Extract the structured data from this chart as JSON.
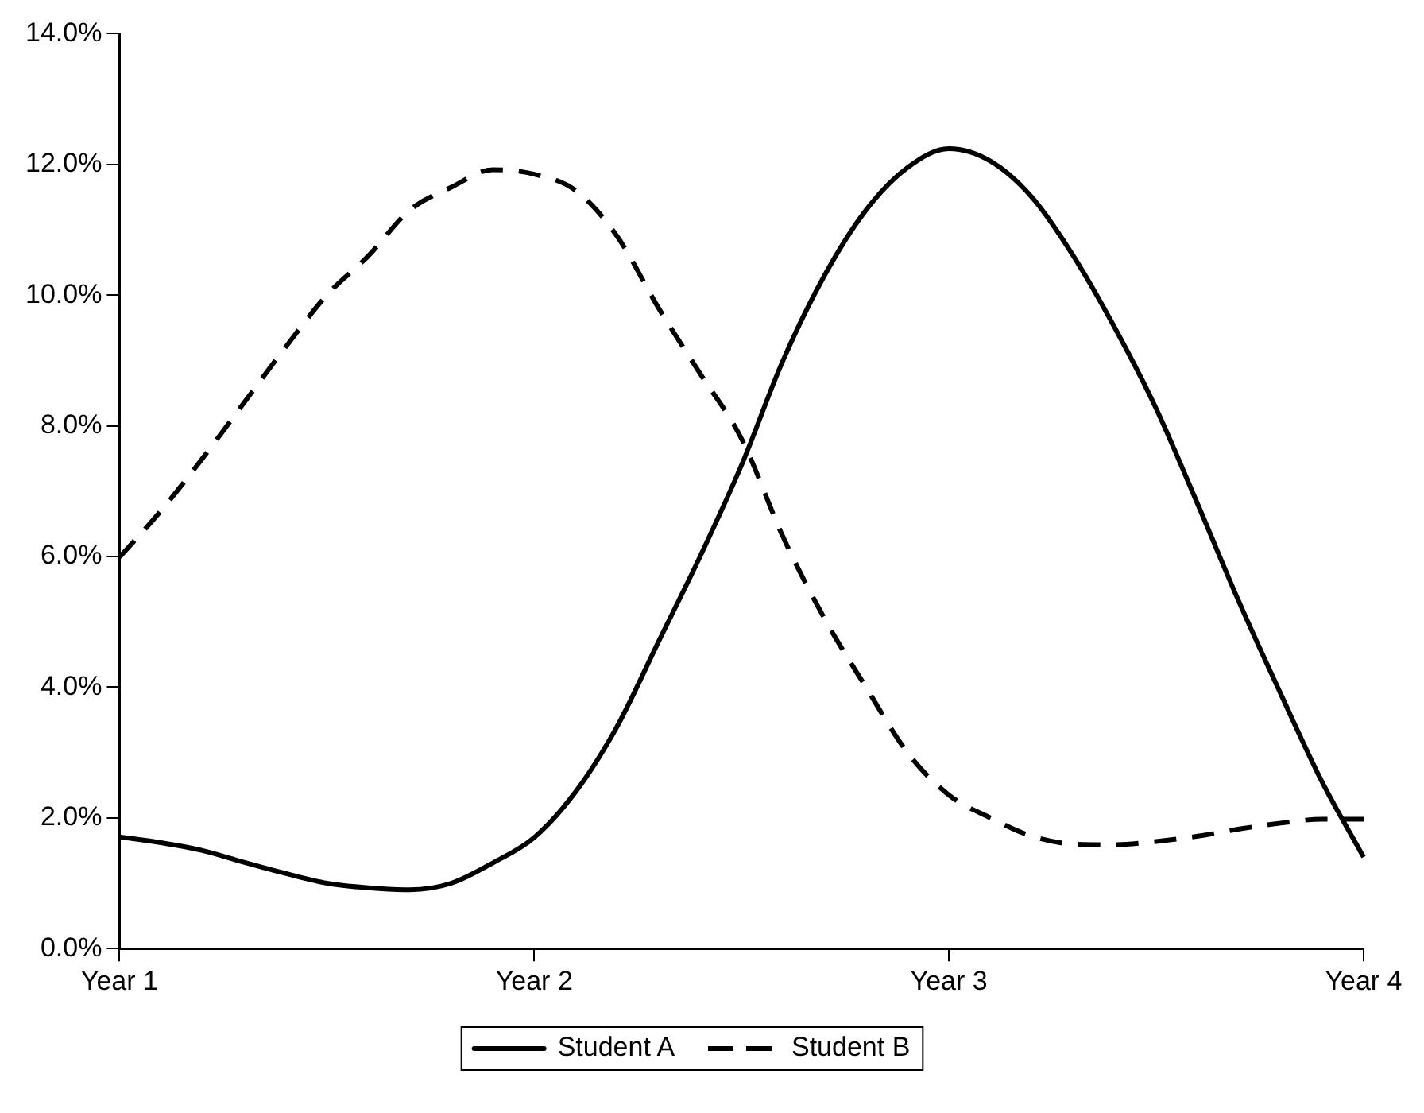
{
  "chart_data": {
    "type": "line",
    "categories": [
      "Year 1",
      null,
      null,
      null,
      null,
      null,
      null,
      null,
      null,
      null,
      "Year 2",
      null,
      null,
      null,
      null,
      null,
      null,
      null,
      null,
      null,
      "Year 3",
      null,
      null,
      null,
      null,
      null,
      null,
      null,
      null,
      null,
      "Year 4"
    ],
    "ylim": [
      0,
      14
    ],
    "yticks": [
      {
        "value": 0,
        "label": "0.0%"
      },
      {
        "value": 2,
        "label": "2.0%"
      },
      {
        "value": 4,
        "label": "4.0%"
      },
      {
        "value": 6,
        "label": "6.0%"
      },
      {
        "value": 8,
        "label": "8.0%"
      },
      {
        "value": 10,
        "label": "10.0%"
      },
      {
        "value": 12,
        "label": "12.0%"
      },
      {
        "value": 14,
        "label": "14.0%"
      }
    ],
    "grid": false,
    "legend": "bottom",
    "marker": "none",
    "series": [
      {
        "name": "Student A",
        "color": "#000000",
        "line_style": "solid",
        "values": [
          1.71,
          1.62,
          1.5,
          1.32,
          1.15,
          1.0,
          0.93,
          0.9,
          1.0,
          1.31,
          1.7,
          2.4,
          3.4,
          4.7,
          6.0,
          7.4,
          9.0,
          10.3,
          11.3,
          11.95,
          12.24,
          12.05,
          11.5,
          10.6,
          9.5,
          8.26,
          6.8,
          5.3,
          3.9,
          2.55,
          1.4
        ]
      },
      {
        "name": "Student B",
        "color": "#000000",
        "line_style": "dashed",
        "values": [
          5.99,
          6.7,
          7.5,
          8.35,
          9.2,
          10.0,
          10.6,
          11.3,
          11.65,
          11.92,
          11.85,
          11.6,
          10.9,
          9.8,
          8.8,
          7.8,
          6.3,
          5.05,
          4.0,
          3.0,
          2.35,
          2.0,
          1.72,
          1.6,
          1.59,
          1.64,
          1.72,
          1.83,
          1.92,
          1.98,
          1.98
        ]
      }
    ]
  }
}
